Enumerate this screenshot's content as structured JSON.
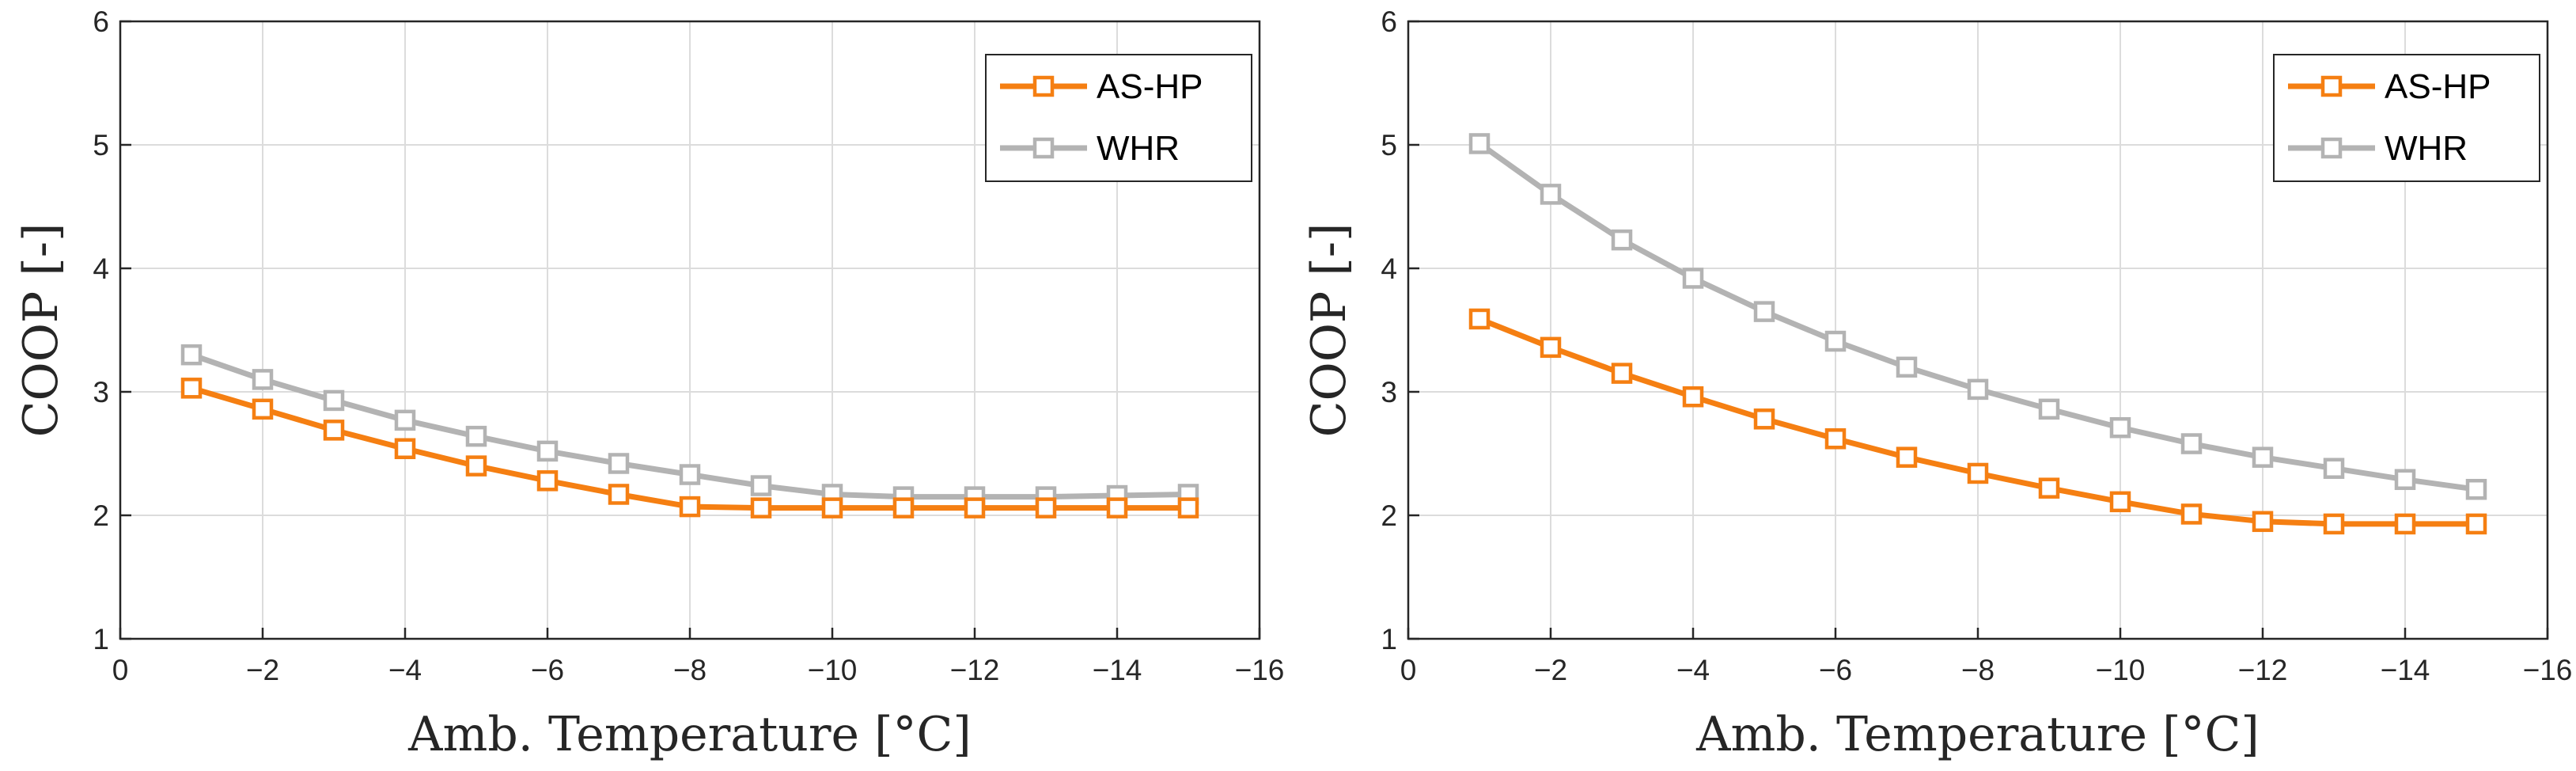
{
  "colors": {
    "ashp": "#F57F12",
    "whr": "#B3B3B3",
    "grid": "#DCDCDC",
    "axis": "#262626"
  },
  "chart_data": [
    {
      "type": "line",
      "title": "",
      "xlabel": "Amb. Temperature [°C]",
      "ylabel": "COOP [-]",
      "xlim": [
        0,
        -16
      ],
      "ylim": [
        1,
        6
      ],
      "x_ticks": [
        0,
        -2,
        -4,
        -6,
        -8,
        -10,
        -12,
        -14,
        -16
      ],
      "x_tick_labels": [
        "0",
        "−2",
        "−4",
        "−6",
        "−8",
        "−10",
        "−12",
        "−14",
        "−16"
      ],
      "y_ticks": [
        1,
        2,
        3,
        4,
        5,
        6
      ],
      "y_tick_labels": [
        "1",
        "2",
        "3",
        "4",
        "5",
        "6"
      ],
      "grid": true,
      "legend_position": "top-right",
      "x": [
        -1,
        -2,
        -3,
        -4,
        -5,
        -6,
        -7,
        -8,
        -9,
        -10,
        -11,
        -12,
        -13,
        -14,
        -15
      ],
      "series": [
        {
          "name": "AS-HP",
          "color": "#F57F12",
          "marker": "square",
          "values": [
            3.03,
            2.86,
            2.69,
            2.54,
            2.4,
            2.28,
            2.17,
            2.07,
            2.06,
            2.06,
            2.06,
            2.06,
            2.06,
            2.06,
            2.06
          ]
        },
        {
          "name": "WHR",
          "color": "#B3B3B3",
          "marker": "square",
          "values": [
            3.3,
            3.1,
            2.93,
            2.77,
            2.64,
            2.52,
            2.42,
            2.33,
            2.24,
            2.17,
            2.15,
            2.15,
            2.15,
            2.16,
            2.17
          ]
        }
      ]
    },
    {
      "type": "line",
      "title": "",
      "xlabel": "Amb. Temperature [°C]",
      "ylabel": "COOP [-]",
      "xlim": [
        0,
        -16
      ],
      "ylim": [
        1,
        6
      ],
      "x_ticks": [
        0,
        -2,
        -4,
        -6,
        -8,
        -10,
        -12,
        -14,
        -16
      ],
      "x_tick_labels": [
        "0",
        "−2",
        "−4",
        "−6",
        "−8",
        "−10",
        "−12",
        "−14",
        "−16"
      ],
      "y_ticks": [
        1,
        2,
        3,
        4,
        5,
        6
      ],
      "y_tick_labels": [
        "1",
        "2",
        "3",
        "4",
        "5",
        "6"
      ],
      "grid": true,
      "legend_position": "top-right",
      "x": [
        -1,
        -2,
        -3,
        -4,
        -5,
        -6,
        -7,
        -8,
        -9,
        -10,
        -11,
        -12,
        -13,
        -14,
        -15
      ],
      "series": [
        {
          "name": "AS-HP",
          "color": "#F57F12",
          "marker": "square",
          "values": [
            3.59,
            3.36,
            3.15,
            2.96,
            2.78,
            2.62,
            2.47,
            2.34,
            2.22,
            2.11,
            2.01,
            1.95,
            1.93,
            1.93,
            1.93
          ]
        },
        {
          "name": "WHR",
          "color": "#B3B3B3",
          "marker": "square",
          "values": [
            5.01,
            4.6,
            4.23,
            3.92,
            3.65,
            3.41,
            3.2,
            3.02,
            2.86,
            2.71,
            2.58,
            2.47,
            2.38,
            2.29,
            2.21
          ]
        }
      ]
    }
  ]
}
